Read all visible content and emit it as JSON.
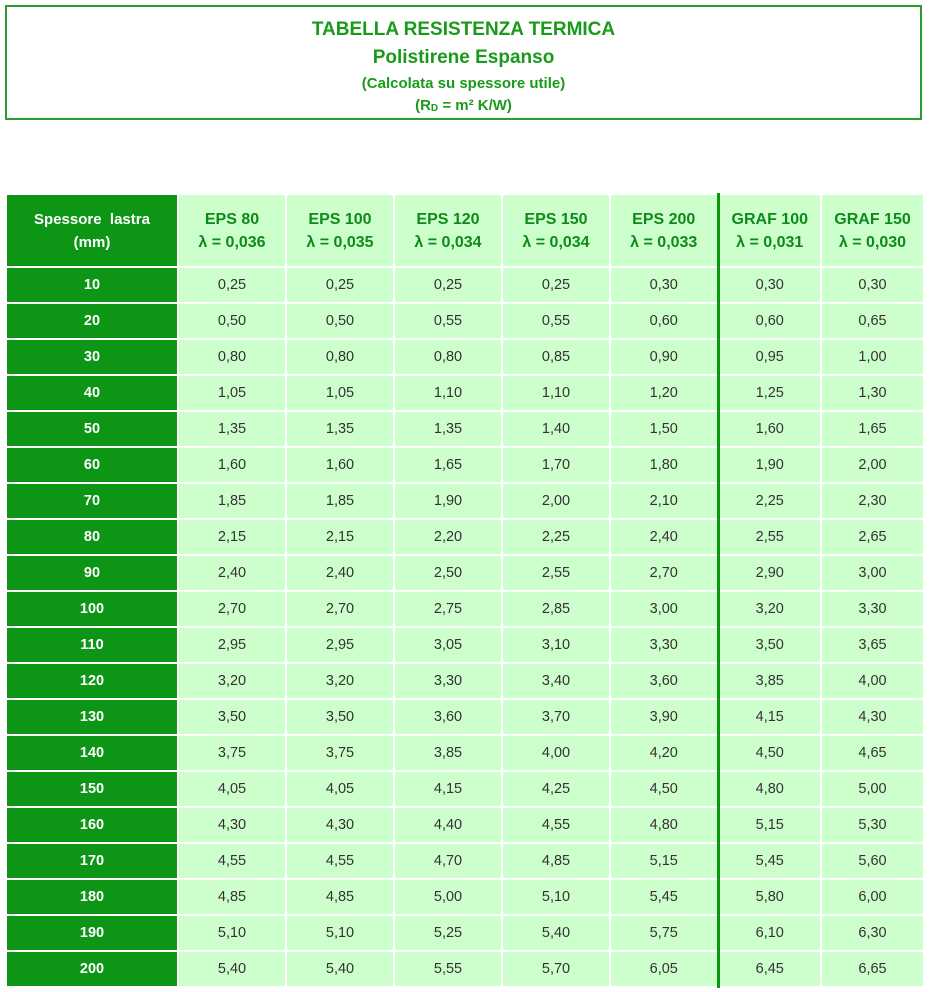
{
  "header": {
    "line1": "TABELLA RESISTENZA TERMICA",
    "line2": "Polistirene Espanso",
    "line3": "(Calcolata su spessore utile)",
    "line4_prefix": "(R",
    "line4_sub": "D",
    "line4_suffix": " = m² K/W)"
  },
  "table": {
    "corner": {
      "line1": "Spessore  lastra",
      "line2": "(mm)"
    },
    "columns": [
      {
        "name": "EPS 80",
        "lambda": "λ = 0,036"
      },
      {
        "name": "EPS 100",
        "lambda": "λ = 0,035"
      },
      {
        "name": "EPS 120",
        "lambda": "λ = 0,034"
      },
      {
        "name": "EPS 150",
        "lambda": "λ = 0,034"
      },
      {
        "name": "EPS 200",
        "lambda": "λ = 0,033"
      },
      {
        "name": "GRAF 100",
        "lambda": "λ = 0,031"
      },
      {
        "name": "GRAF 150",
        "lambda": "λ = 0,030"
      }
    ],
    "rows": [
      {
        "thickness": "10",
        "values": [
          "0,25",
          "0,25",
          "0,25",
          "0,25",
          "0,30",
          "0,30",
          "0,30"
        ]
      },
      {
        "thickness": "20",
        "values": [
          "0,50",
          "0,50",
          "0,55",
          "0,55",
          "0,60",
          "0,60",
          "0,65"
        ]
      },
      {
        "thickness": "30",
        "values": [
          "0,80",
          "0,80",
          "0,80",
          "0,85",
          "0,90",
          "0,95",
          "1,00"
        ]
      },
      {
        "thickness": "40",
        "values": [
          "1,05",
          "1,05",
          "1,10",
          "1,10",
          "1,20",
          "1,25",
          "1,30"
        ]
      },
      {
        "thickness": "50",
        "values": [
          "1,35",
          "1,35",
          "1,35",
          "1,40",
          "1,50",
          "1,60",
          "1,65"
        ]
      },
      {
        "thickness": "60",
        "values": [
          "1,60",
          "1,60",
          "1,65",
          "1,70",
          "1,80",
          "1,90",
          "2,00"
        ]
      },
      {
        "thickness": "70",
        "values": [
          "1,85",
          "1,85",
          "1,90",
          "2,00",
          "2,10",
          "2,25",
          "2,30"
        ]
      },
      {
        "thickness": "80",
        "values": [
          "2,15",
          "2,15",
          "2,20",
          "2,25",
          "2,40",
          "2,55",
          "2,65"
        ]
      },
      {
        "thickness": "90",
        "values": [
          "2,40",
          "2,40",
          "2,50",
          "2,55",
          "2,70",
          "2,90",
          "3,00"
        ]
      },
      {
        "thickness": "100",
        "values": [
          "2,70",
          "2,70",
          "2,75",
          "2,85",
          "3,00",
          "3,20",
          "3,30"
        ]
      },
      {
        "thickness": "110",
        "values": [
          "2,95",
          "2,95",
          "3,05",
          "3,10",
          "3,30",
          "3,50",
          "3,65"
        ]
      },
      {
        "thickness": "120",
        "values": [
          "3,20",
          "3,20",
          "3,30",
          "3,40",
          "3,60",
          "3,85",
          "4,00"
        ]
      },
      {
        "thickness": "130",
        "values": [
          "3,50",
          "3,50",
          "3,60",
          "3,70",
          "3,90",
          "4,15",
          "4,30"
        ]
      },
      {
        "thickness": "140",
        "values": [
          "3,75",
          "3,75",
          "3,85",
          "4,00",
          "4,20",
          "4,50",
          "4,65"
        ]
      },
      {
        "thickness": "150",
        "values": [
          "4,05",
          "4,05",
          "4,15",
          "4,25",
          "4,50",
          "4,80",
          "5,00"
        ]
      },
      {
        "thickness": "160",
        "values": [
          "4,30",
          "4,30",
          "4,40",
          "4,55",
          "4,80",
          "5,15",
          "5,30"
        ]
      },
      {
        "thickness": "170",
        "values": [
          "4,55",
          "4,55",
          "4,70",
          "4,85",
          "5,15",
          "5,45",
          "5,60"
        ]
      },
      {
        "thickness": "180",
        "values": [
          "4,85",
          "4,85",
          "5,00",
          "5,10",
          "5,45",
          "5,80",
          "6,00"
        ]
      },
      {
        "thickness": "190",
        "values": [
          "5,10",
          "5,10",
          "5,25",
          "5,40",
          "5,75",
          "6,10",
          "6,30"
        ]
      },
      {
        "thickness": "200",
        "values": [
          "5,40",
          "5,40",
          "5,55",
          "5,70",
          "6,05",
          "6,45",
          "6,65"
        ]
      }
    ]
  },
  "colors": {
    "title_green": "#1a9a1a",
    "header_green": "#0d9516",
    "cell_light_green": "#ccffcc",
    "value_text": "#333333"
  }
}
